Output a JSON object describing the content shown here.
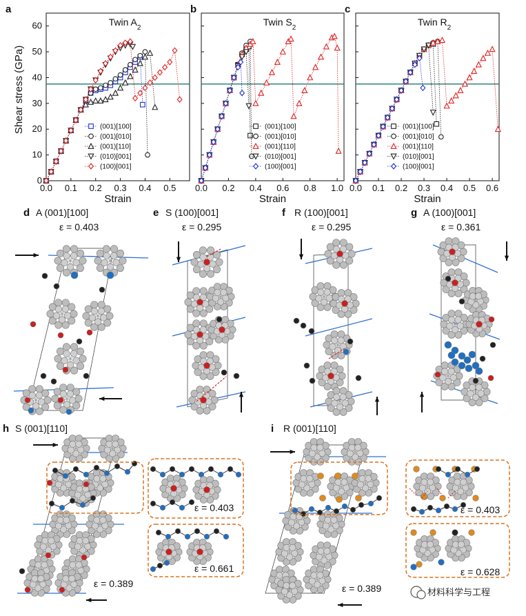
{
  "charts": [
    {
      "label": "a",
      "title": "Twin A",
      "title_sub": "2",
      "chart_data": {
        "type": "line",
        "xlabel": "Strain",
        "ylabel": "Shear stress (GPa)",
        "xlim": [
          0,
          0.58
        ],
        "ylim": [
          0,
          65
        ],
        "xticks": [
          "0.0",
          "0.1",
          "0.2",
          "0.3",
          "0.4",
          "0.5"
        ],
        "yticks": [
          "0",
          "10",
          "20",
          "30",
          "40",
          "50",
          "60"
        ],
        "hline": 37.5,
        "series": [
          {
            "name": "(001)[100]",
            "color": "#1a2fd6",
            "marker": "square",
            "x": [
              0,
              0.02,
              0.04,
              0.06,
              0.08,
              0.1,
              0.12,
              0.14,
              0.16,
              0.18,
              0.2,
              0.22,
              0.24,
              0.26,
              0.28,
              0.3,
              0.32,
              0.34,
              0.36,
              0.38
            ],
            "y": [
              0,
              3.5,
              7.5,
              11.5,
              15.5,
              19.5,
              23.5,
              27.5,
              31,
              34,
              35,
              35.5,
              36,
              37,
              38.5,
              40,
              42,
              44,
              46,
              48
            ],
            "drop": [
              0.39,
              29.5
            ]
          },
          {
            "name": "(001)[010]",
            "color": "#222222",
            "marker": "circle",
            "x": [
              0,
              0.02,
              0.04,
              0.06,
              0.08,
              0.1,
              0.12,
              0.14,
              0.16,
              0.18,
              0.2,
              0.22,
              0.24,
              0.26,
              0.28,
              0.3,
              0.32,
              0.34,
              0.36,
              0.38,
              0.4
            ],
            "y": [
              0,
              3.5,
              7.5,
              11.5,
              15.5,
              19.5,
              23.5,
              27.5,
              31,
              34,
              35.5,
              36,
              37,
              38,
              39.5,
              41,
              43,
              45,
              47,
              48.5,
              50
            ],
            "drop": [
              0.41,
              10
            ]
          },
          {
            "name": "(001)[110]",
            "color": "#222222",
            "marker": "triangle",
            "x": [
              0,
              0.02,
              0.04,
              0.06,
              0.08,
              0.1,
              0.12,
              0.14,
              0.16,
              0.18,
              0.2,
              0.22,
              0.24,
              0.26,
              0.28,
              0.3,
              0.32,
              0.34,
              0.36,
              0.38,
              0.4,
              0.42
            ],
            "y": [
              0,
              3.5,
              7.5,
              11.5,
              15.5,
              19.5,
              23.5,
              27.5,
              29.5,
              30.5,
              31,
              31,
              31.5,
              32.5,
              34,
              36,
              38,
              40.5,
              43,
              45.5,
              48,
              49.5
            ],
            "drop": [
              0.44,
              28.5
            ]
          },
          {
            "name": "(010)[001]",
            "color": "#222222",
            "marker": "tri-down",
            "x": [
              0,
              0.02,
              0.04,
              0.06,
              0.08,
              0.1,
              0.12,
              0.14,
              0.16,
              0.18,
              0.2,
              0.22,
              0.24,
              0.26,
              0.28,
              0.3,
              0.32,
              0.34
            ],
            "y": [
              0,
              3.5,
              7.5,
              11.5,
              15.5,
              19.5,
              23.5,
              27.5,
              31.5,
              35.5,
              39,
              42,
              45,
              47.5,
              50,
              51.5,
              52.5,
              53
            ],
            "drop": [
              0.35,
              52
            ]
          },
          {
            "name": "(100)[001]",
            "color": "#e02020",
            "marker": "diamond",
            "x": [
              0,
              0.02,
              0.04,
              0.06,
              0.08,
              0.1,
              0.12,
              0.14,
              0.16,
              0.18,
              0.2,
              0.22,
              0.24,
              0.26,
              0.28,
              0.3,
              0.32,
              0.34,
              0.36,
              0.38,
              0.4,
              0.42,
              0.44,
              0.46,
              0.48,
              0.5,
              0.52
            ],
            "y": [
              0,
              3.5,
              7.5,
              11.5,
              15.5,
              19.5,
              23.5,
              27.5,
              31.5,
              35.5,
              39,
              42.5,
              45.5,
              48,
              50.5,
              52.5,
              53.5,
              54,
              32,
              34,
              36,
              38,
              40,
              42,
              44,
              46,
              50.5
            ],
            "drop": [
              0.54,
              31.5
            ]
          }
        ]
      }
    },
    {
      "label": "b",
      "title": "Twin S",
      "title_sub": "2",
      "chart_data": {
        "type": "line",
        "xlabel": "Strain",
        "ylabel": "",
        "xlim": [
          0,
          1.05
        ],
        "ylim": [
          0,
          65
        ],
        "xticks": [
          "0.0",
          "0.2",
          "0.4",
          "0.6",
          "0.8",
          "1.0"
        ],
        "yticks": [],
        "hline": 37.5,
        "series": [
          {
            "name": "(001)[100]",
            "color": "#222222",
            "marker": "square",
            "x": [
              0,
              0.03,
              0.06,
              0.09,
              0.12,
              0.15,
              0.18,
              0.21,
              0.24,
              0.27,
              0.3,
              0.33,
              0.35
            ],
            "y": [
              0,
              5,
              10,
              15,
              20,
              25,
              30,
              35,
              40,
              45,
              49,
              51,
              52
            ],
            "drop": [
              0.36,
              17.5
            ]
          },
          {
            "name": "(001)[010]",
            "color": "#222222",
            "marker": "circle",
            "x": [
              0,
              0.03,
              0.06,
              0.09,
              0.12,
              0.15,
              0.18,
              0.21,
              0.24,
              0.27,
              0.3,
              0.33,
              0.36
            ],
            "y": [
              0,
              5,
              10,
              15,
              20,
              25,
              30,
              35,
              40,
              45,
              49.5,
              52.5,
              54
            ],
            "drop": [
              0.37,
              9.5
            ]
          },
          {
            "name": "(001)[110]",
            "color": "#e02020",
            "marker": "triangle",
            "x": [
              0,
              0.03,
              0.06,
              0.09,
              0.12,
              0.15,
              0.18,
              0.21,
              0.24,
              0.27,
              0.3,
              0.33,
              0.36,
              0.38,
              0.4,
              0.44,
              0.48,
              0.52,
              0.56,
              0.6,
              0.64,
              0.66,
              0.68,
              0.72,
              0.76,
              0.8,
              0.84,
              0.88,
              0.92,
              0.96,
              0.98,
              1.0
            ],
            "y": [
              0,
              5,
              10,
              15,
              20,
              25,
              30,
              35,
              40,
              45,
              49,
              51.5,
              53,
              54,
              30,
              34,
              38,
              42,
              46,
              50,
              54,
              55,
              25,
              30,
              35,
              40,
              44,
              48,
              52,
              55.5,
              56,
              51.5
            ],
            "drop": [
              1.01,
              11.5
            ]
          },
          {
            "name": "(010)[001]",
            "color": "#222222",
            "marker": "tri-down",
            "x": [
              0,
              0.03,
              0.06,
              0.09,
              0.12,
              0.15,
              0.18,
              0.21,
              0.24,
              0.27,
              0.3,
              0.33
            ],
            "y": [
              0,
              5,
              10,
              15,
              20,
              25,
              30,
              35,
              40,
              44.5,
              48,
              50
            ],
            "drop": [
              0.35,
              29
            ]
          },
          {
            "name": "(100)[001]",
            "color": "#1a2fd6",
            "marker": "diamond",
            "x": [
              0,
              0.03,
              0.06,
              0.09,
              0.12,
              0.15,
              0.18,
              0.21,
              0.24,
              0.27,
              0.29
            ],
            "y": [
              0,
              5,
              10,
              15,
              20,
              25,
              30,
              35,
              40,
              44,
              46
            ],
            "drop": [
              0.3,
              34
            ]
          }
        ]
      }
    },
    {
      "label": "c",
      "title": "Twin R",
      "title_sub": "2",
      "chart_data": {
        "type": "line",
        "xlabel": "Strain",
        "ylabel": "",
        "xlim": [
          0,
          0.63
        ],
        "ylim": [
          0,
          65
        ],
        "xticks": [
          "0.0",
          "0.1",
          "0.2",
          "0.3",
          "0.4",
          "0.5",
          "0.6"
        ],
        "yticks": [],
        "hline": 37.5,
        "series": [
          {
            "name": "(001)[100]",
            "color": "#222222",
            "marker": "square",
            "x": [
              0,
              0.02,
              0.04,
              0.06,
              0.08,
              0.1,
              0.12,
              0.14,
              0.16,
              0.18,
              0.2,
              0.22,
              0.24,
              0.26,
              0.28,
              0.3,
              0.32,
              0.34
            ],
            "y": [
              0,
              3.5,
              7,
              10.5,
              14,
              17.5,
              21,
              24.5,
              28,
              31.5,
              35,
              38.5,
              42,
              45.5,
              48.5,
              51,
              52.5,
              53
            ],
            "drop": [
              0.355,
              22
            ]
          },
          {
            "name": "(001)[010]",
            "color": "#222222",
            "marker": "circle",
            "x": [
              0,
              0.02,
              0.04,
              0.06,
              0.08,
              0.1,
              0.12,
              0.14,
              0.16,
              0.18,
              0.2,
              0.22,
              0.24,
              0.26,
              0.28,
              0.3,
              0.32,
              0.34,
              0.36
            ],
            "y": [
              0,
              3.5,
              7,
              10.5,
              14,
              17.5,
              21,
              24.5,
              28,
              31.5,
              35,
              38.5,
              42,
              45.5,
              48.5,
              51,
              52.5,
              53.5,
              54
            ],
            "drop": [
              0.375,
              17
            ]
          },
          {
            "name": "(001)[110]",
            "color": "#e02020",
            "marker": "triangle",
            "x": [
              0,
              0.02,
              0.04,
              0.06,
              0.08,
              0.1,
              0.12,
              0.14,
              0.16,
              0.18,
              0.2,
              0.22,
              0.24,
              0.26,
              0.28,
              0.3,
              0.32,
              0.34,
              0.36,
              0.38,
              0.4,
              0.42,
              0.44,
              0.46,
              0.48,
              0.5,
              0.52,
              0.54,
              0.56,
              0.58,
              0.6
            ],
            "y": [
              0,
              3.5,
              7,
              10.5,
              14,
              17.5,
              21,
              24.5,
              28,
              31.5,
              35,
              38.5,
              42,
              45.5,
              48.5,
              51,
              52.5,
              53.5,
              54,
              54.5,
              29,
              31,
              33,
              35,
              37.5,
              40,
              42.5,
              45,
              47.5,
              49.5,
              51
            ],
            "drop": [
              0.625,
              20
            ]
          },
          {
            "name": "(010)[001]",
            "color": "#222222",
            "marker": "tri-down",
            "x": [
              0,
              0.02,
              0.04,
              0.06,
              0.08,
              0.1,
              0.12,
              0.14,
              0.16,
              0.18,
              0.2,
              0.22,
              0.24,
              0.26,
              0.28,
              0.3,
              0.32
            ],
            "y": [
              0,
              3.5,
              7,
              10.5,
              14,
              17.5,
              21,
              24.5,
              28,
              31.5,
              35,
              38.5,
              42,
              45.5,
              48.5,
              51,
              52.5
            ],
            "drop": [
              0.34,
              26.5
            ]
          },
          {
            "name": "(100)[001]",
            "color": "#1a2fd6",
            "marker": "diamond",
            "x": [
              0,
              0.02,
              0.04,
              0.06,
              0.08,
              0.1,
              0.12,
              0.14,
              0.16,
              0.18,
              0.2,
              0.22,
              0.24,
              0.26,
              0.28
            ],
            "y": [
              0,
              3.5,
              7,
              10.5,
              14,
              17.5,
              21,
              24.5,
              28,
              31.5,
              35,
              38.5,
              42,
              45,
              47.5
            ],
            "drop": [
              0.295,
              36
            ]
          }
        ]
      }
    }
  ],
  "structure_panels": [
    {
      "label": "d",
      "title": "A (001)[100]",
      "eps": "ε =  0.403"
    },
    {
      "label": "e",
      "title": "S (100)[001]",
      "eps": "ε = 0.295"
    },
    {
      "label": "f",
      "title": "R (100)[001]",
      "eps": "ε = 0.295"
    },
    {
      "label": "g",
      "title": "A (100)[001]",
      "eps": "ε = 0.361"
    }
  ],
  "lower_panels": [
    {
      "label": "h",
      "title": "S (001)[110]",
      "eps_main": "ε = 0.389",
      "inset_eps": [
        "ε = 0.403",
        "ε = 0.661"
      ]
    },
    {
      "label": "i",
      "title": "R (001)[110]",
      "eps_main": "ε = 0.389",
      "inset_eps": [
        "ε = 0.403",
        "ε = 0.628"
      ]
    }
  ],
  "watermark": "材料科学与工程",
  "colors": {
    "red": "#e02020",
    "blue": "#1a2fd6",
    "teal": "#1e7a6e",
    "atom_gray": "#bdbdbd",
    "atom_red": "#cc1f1f",
    "atom_black": "#222222",
    "atom_blue": "#1f6fc4",
    "atom_orange": "#e08a1e",
    "box_orange": "#d9701c"
  }
}
